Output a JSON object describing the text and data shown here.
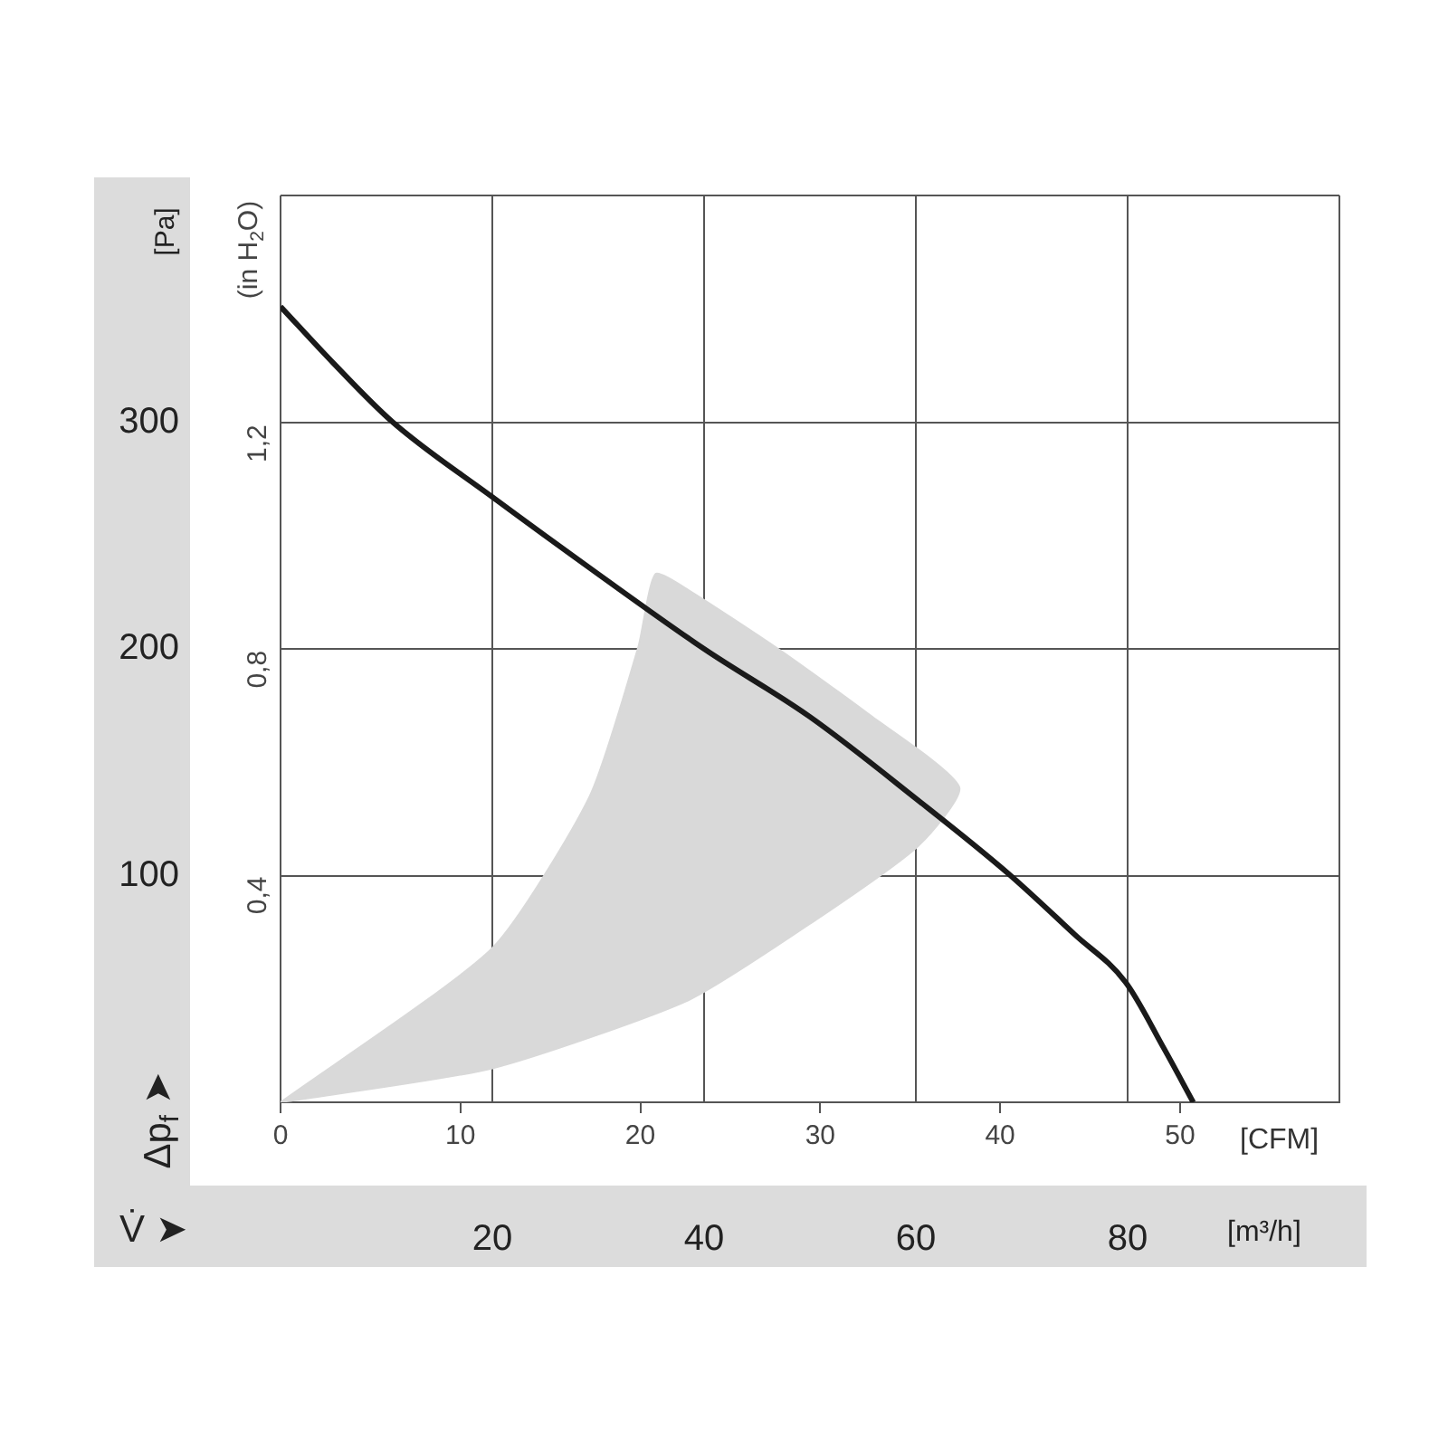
{
  "chart_data": {
    "type": "line",
    "xlabel": "[m³/h]",
    "x2label": "[CFM]",
    "ylabel": "[Pa]",
    "y2label": "(in H$_{2}$O)",
    "annotations": [
      "V̇ ➤",
      "Δp$_{f}$ ➤"
    ],
    "series": [
      {
        "type": "area",
        "color": "#d9d9d9",
        "x": [
          0,
          20,
          29.2,
          33.8,
          35.4,
          38.5,
          47,
          55.6,
          64.1,
          60.2,
          50.4,
          38.5,
          20,
          0
        ],
        "values": [
          0,
          68,
          135,
          201,
          233,
          226,
          200,
          171,
          139,
          113,
          80,
          45,
          15,
          0
        ]
      },
      {
        "type": "line",
        "color": "#1a1a1a",
        "x": [
          0,
          5,
          10.6,
          20,
          30,
          40,
          50,
          60,
          68.7,
          75,
          79.8,
          83.4,
          86.2
        ],
        "values": [
          351,
          326,
          300,
          267,
          233,
          200,
          170,
          134,
          101,
          74,
          53,
          24,
          0
        ]
      }
    ],
    "xlim": [
      0,
      100
    ],
    "xticks": [
      {
        "value": 0,
        "label": null
      },
      20,
      40,
      60,
      80,
      {
        "value": 100,
        "label": null
      }
    ],
    "x2lim": [
      0,
      58.86
    ],
    "x2ticks": [
      0,
      10,
      20,
      30,
      40,
      50
    ],
    "ylim": [
      0,
      400
    ],
    "yticks": [
      {
        "value": 0,
        "label": null
      },
      100,
      200,
      300,
      {
        "value": 400,
        "label": null
      }
    ],
    "y2lim": [
      0,
      1.606
    ],
    "y2ticks": [
      {
        "value": 0.4,
        "label": "0,4"
      },
      {
        "value": 0.8,
        "label": "0,8"
      },
      {
        "value": 1.2,
        "label": "1,2"
      }
    ],
    "grid": true,
    "marker": "none"
  }
}
